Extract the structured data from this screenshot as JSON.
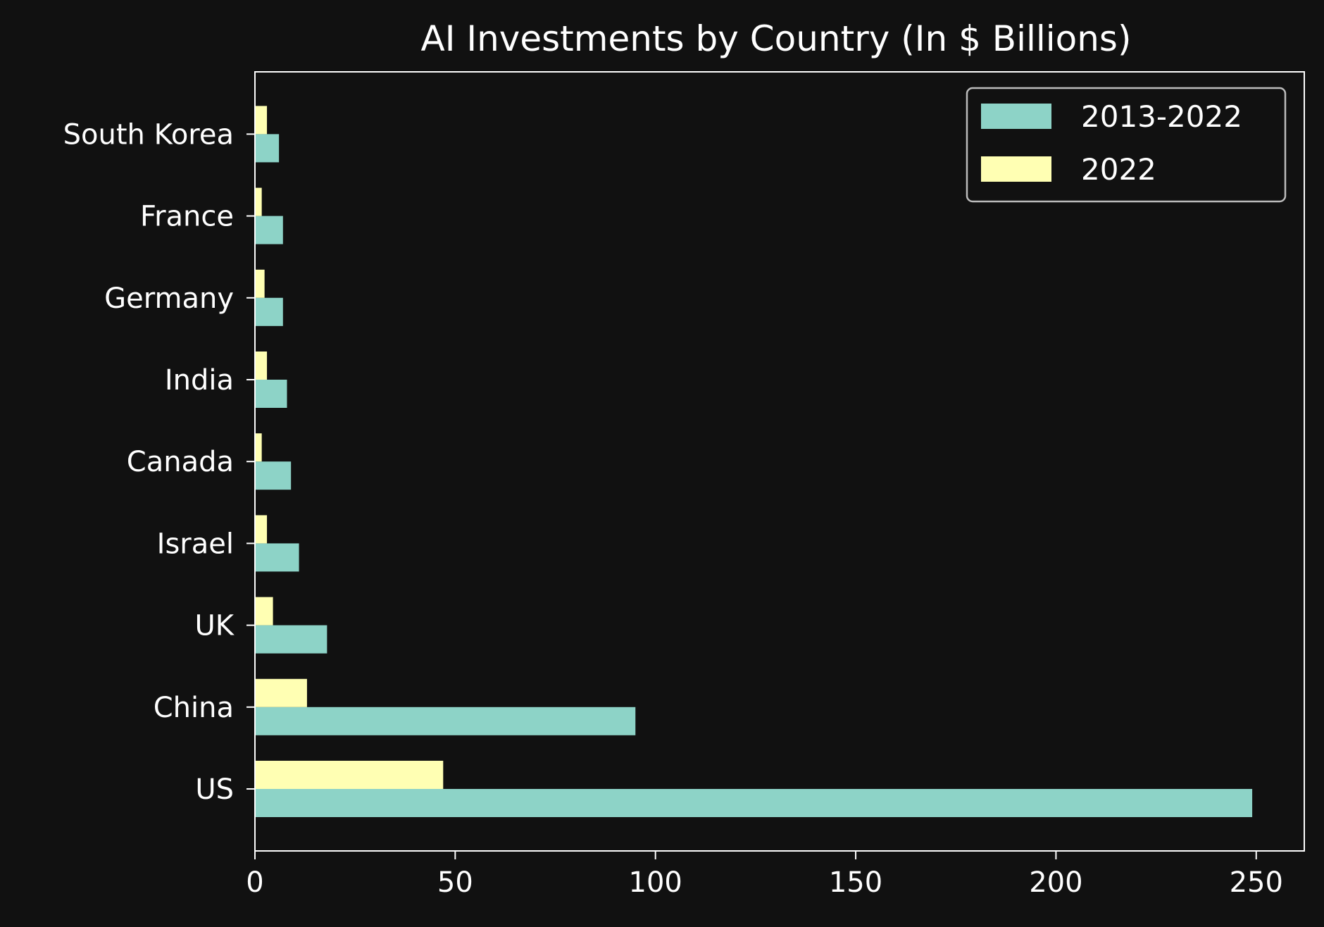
{
  "chart_data": {
    "type": "bar",
    "orientation": "horizontal",
    "title": "AI Investments by Country (In $ Billions)",
    "xlabel": "",
    "ylabel": "",
    "categories": [
      "US",
      "China",
      "UK",
      "Israel",
      "Canada",
      "India",
      "Germany",
      "France",
      "South Korea"
    ],
    "series": [
      {
        "name": "2013-2022",
        "color": "#8dd3c7",
        "values": [
          249,
          95,
          18,
          11,
          9,
          8,
          7,
          7,
          6
        ]
      },
      {
        "name": "2022",
        "color": "#ffffb3",
        "values": [
          47,
          13,
          4.5,
          3,
          1.7,
          3,
          2.4,
          1.7,
          3
        ]
      }
    ],
    "xlim": [
      0,
      262
    ],
    "xticks": [
      0,
      50,
      100,
      150,
      200,
      250
    ],
    "grid": false,
    "legend_position": "top-right",
    "background_color": "#111111",
    "axis_color": "#ffffff"
  }
}
